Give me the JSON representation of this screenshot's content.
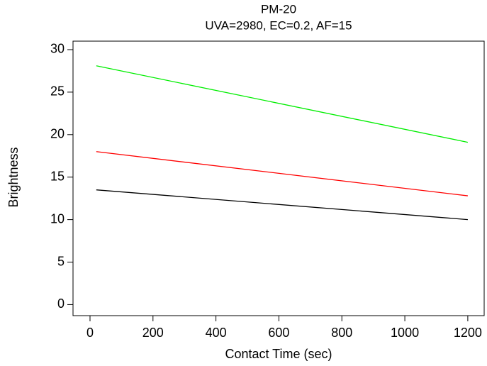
{
  "chart_data": {
    "type": "line",
    "title": "PM-20",
    "subtitle": "UVA=2980,  EC=0.2,  AF=15",
    "x_label": "Contact Time (sec)",
    "y_label": "Brightness",
    "x": [
      20,
      1200
    ],
    "series": [
      {
        "color": "#00ee00",
        "values": [
          28.1,
          19.1
        ]
      },
      {
        "color": "#ff0000",
        "values": [
          18.0,
          12.8
        ]
      },
      {
        "color": "#000000",
        "values": [
          13.5,
          10.0
        ]
      }
    ],
    "xlim": [
      -54,
      1252
    ],
    "xticks": [
      0,
      200,
      400,
      600,
      800,
      1000,
      1200
    ],
    "ylim": [
      -1.3,
      31
    ],
    "yticks": [
      0,
      5,
      10,
      15,
      20,
      25,
      30
    ],
    "grid": false
  }
}
